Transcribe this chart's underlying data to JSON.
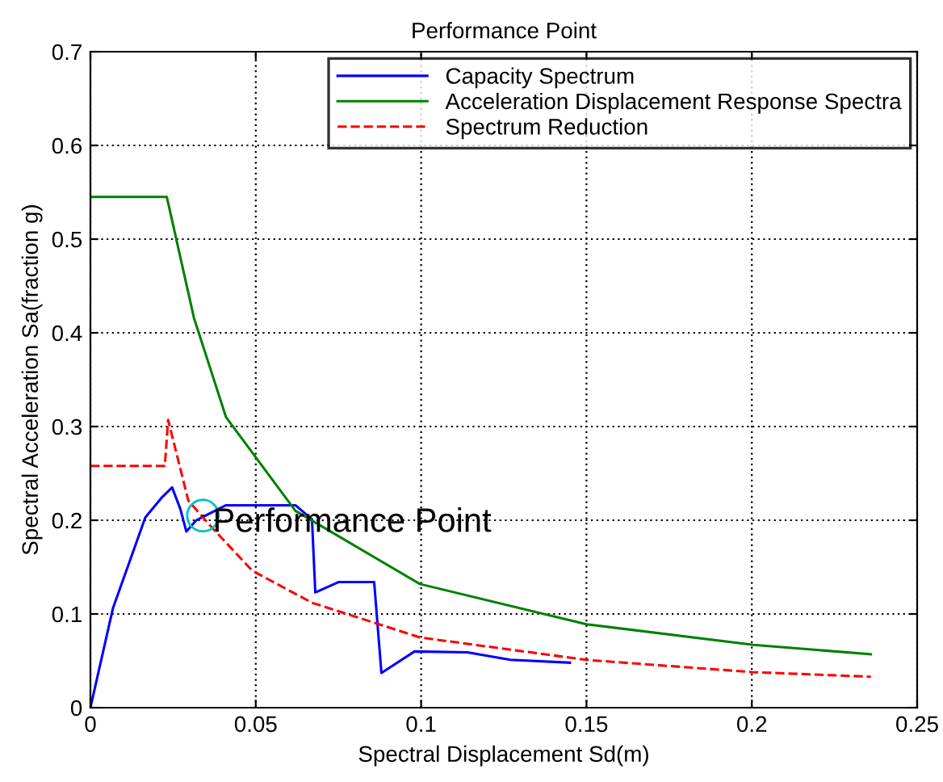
{
  "chart_data": {
    "type": "line",
    "title": "Performance Point",
    "xlabel": "Spectral Displacement Sd(m)",
    "ylabel": "Spectral Acceleration Sa(fraction g)",
    "xlim": [
      0,
      0.25
    ],
    "xticks": [
      0,
      0.05,
      0.1,
      0.15,
      0.2,
      0.25
    ],
    "ylim": [
      0,
      0.7
    ],
    "yticks": [
      0,
      0.1,
      0.2,
      0.3,
      0.4,
      0.5,
      0.6,
      0.7
    ],
    "grid": true,
    "legend": "top right",
    "series": [
      {
        "name": "Capacity Spectrum",
        "color": "#0000ff",
        "line_style": "solid",
        "x": [
          0,
          0.0068,
          0.0166,
          0.0215,
          0.0247,
          0.0272,
          0.029,
          0.032,
          0.041,
          0.062,
          0.067,
          0.068,
          0.075,
          0.0858,
          0.088,
          0.098,
          0.114,
          0.127,
          0.145
        ],
        "values": [
          0,
          0.106,
          0.203,
          0.224,
          0.235,
          0.212,
          0.188,
          0.2,
          0.216,
          0.216,
          0.201,
          0.123,
          0.134,
          0.134,
          0.037,
          0.06,
          0.059,
          0.051,
          0.048
        ]
      },
      {
        "name": "Acceleration Displacement Response Spectra",
        "color": "#008000",
        "line_style": "solid",
        "x": [
          0,
          0.0231,
          0.0313,
          0.041,
          0.062,
          0.0996,
          0.15,
          0.2005,
          0.236
        ],
        "values": [
          0.545,
          0.545,
          0.416,
          0.31,
          0.21,
          0.132,
          0.089,
          0.067,
          0.057
        ]
      },
      {
        "name": "Spectrum Reduction",
        "color": "#ff0000",
        "line_style": "dashed",
        "x": [
          0,
          0.0225,
          0.0235,
          0.0296,
          0.036,
          0.049,
          0.067,
          0.0996,
          0.15,
          0.2,
          0.236
        ],
        "values": [
          0.258,
          0.258,
          0.307,
          0.221,
          0.195,
          0.146,
          0.112,
          0.075,
          0.051,
          0.038,
          0.033
        ]
      }
    ],
    "annotations": [
      {
        "text": "Performance Point",
        "x": 0.034,
        "y": 0.205
      }
    ]
  }
}
